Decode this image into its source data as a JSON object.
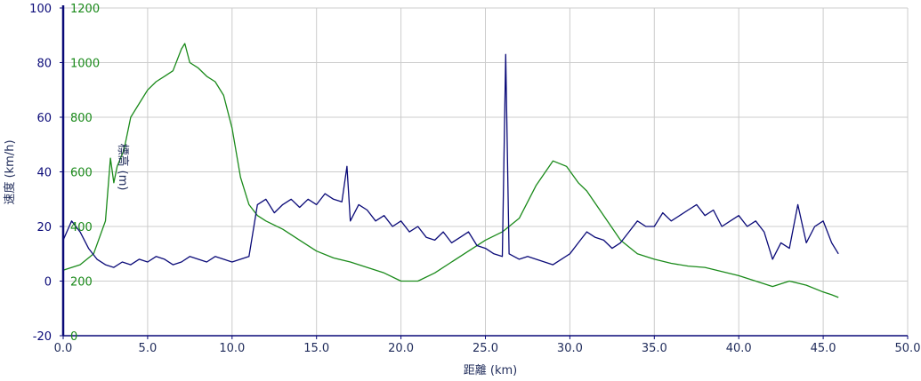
{
  "colors": {
    "speed": "#0a0a78",
    "elevation": "#1a8a1a",
    "grid": "#cccccc",
    "axis": "#0a0a78",
    "axis_text": "#1f2b5a"
  },
  "chart_data": {
    "type": "line",
    "xlabel": "距離 (km)",
    "ylabel": "速度 (km/h)",
    "y2label": "標高 (m)",
    "xlim": [
      0,
      50
    ],
    "ylim": [
      -20,
      100
    ],
    "y2lim": [
      0,
      1200
    ],
    "grid": true,
    "x_ticks": [
      "0.0",
      "5.0",
      "10.0",
      "15.0",
      "20.0",
      "25.0",
      "30.0",
      "35.0",
      "40.0",
      "45.0",
      "50.0"
    ],
    "y_ticks": [
      "100",
      "80",
      "60",
      "40",
      "20",
      "0",
      "-20"
    ],
    "y2_ticks": [
      "1200",
      "1000",
      "800",
      "600",
      "400",
      "200",
      "0"
    ],
    "series": [
      {
        "axis": "y2",
        "x": [
          0,
          1,
          1.8,
          2.5,
          2.8,
          3.0,
          3.2,
          3.6,
          4.0,
          4.5,
          5.0,
          5.5,
          6.0,
          6.5,
          7.0,
          7.2,
          7.5,
          8.0,
          8.5,
          9.0,
          9.5,
          10.0,
          10.5,
          11.0,
          11.5,
          12.0,
          13.0,
          14.0,
          15.0,
          16.0,
          17.0,
          18.0,
          19.0,
          20.0,
          21.0,
          22.0,
          23.0,
          24.0,
          25.0,
          26.0,
          27.0,
          28.0,
          29.0,
          29.8,
          30.5,
          31.0,
          32.0,
          33.0,
          34.0,
          35.0,
          36.0,
          37.0,
          38.0,
          39.0,
          40.0,
          41.0,
          42.0,
          43.0,
          44.0,
          45.0,
          45.5,
          45.9
        ],
        "values": [
          240,
          260,
          300,
          420,
          650,
          560,
          620,
          680,
          800,
          850,
          900,
          930,
          950,
          970,
          1050,
          1070,
          1000,
          980,
          950,
          930,
          880,
          760,
          580,
          480,
          440,
          420,
          390,
          350,
          310,
          285,
          270,
          250,
          230,
          200,
          200,
          230,
          270,
          310,
          350,
          380,
          430,
          550,
          640,
          620,
          560,
          530,
          440,
          350,
          300,
          280,
          265,
          255,
          250,
          235,
          220,
          200,
          180,
          200,
          185,
          160,
          150,
          140
        ]
      },
      {
        "axis": "y",
        "x": [
          0,
          0.5,
          1.0,
          1.5,
          2.0,
          2.5,
          3.0,
          3.5,
          4.0,
          4.5,
          5.0,
          5.5,
          6.0,
          6.5,
          7.0,
          7.5,
          8.0,
          8.5,
          9.0,
          9.5,
          10.0,
          10.5,
          11.0,
          11.5,
          12.0,
          12.5,
          13.0,
          13.5,
          14.0,
          14.5,
          15.0,
          15.5,
          16.0,
          16.5,
          16.8,
          17.0,
          17.5,
          18.0,
          18.5,
          19.0,
          19.5,
          20.0,
          20.5,
          21.0,
          21.5,
          22.0,
          22.5,
          23.0,
          23.5,
          24.0,
          24.5,
          25.0,
          25.5,
          26.0,
          26.2,
          26.4,
          27.0,
          27.5,
          28.0,
          28.5,
          29.0,
          29.5,
          30.0,
          30.5,
          31.0,
          31.5,
          32.0,
          32.5,
          33.0,
          33.5,
          34.0,
          34.5,
          35.0,
          35.5,
          36.0,
          36.5,
          37.0,
          37.5,
          38.0,
          38.5,
          39.0,
          39.5,
          40.0,
          40.5,
          41.0,
          41.5,
          42.0,
          42.5,
          43.0,
          43.5,
          44.0,
          44.5,
          45.0,
          45.5,
          45.9
        ],
        "values": [
          15,
          22,
          18,
          12,
          8,
          6,
          5,
          7,
          6,
          8,
          7,
          9,
          8,
          6,
          7,
          9,
          8,
          7,
          9,
          8,
          7,
          8,
          9,
          28,
          30,
          25,
          28,
          30,
          27,
          30,
          28,
          32,
          30,
          29,
          42,
          22,
          28,
          26,
          22,
          24,
          20,
          22,
          18,
          20,
          16,
          15,
          18,
          14,
          16,
          18,
          13,
          12,
          10,
          9,
          83,
          10,
          8,
          9,
          8,
          7,
          6,
          8,
          10,
          14,
          18,
          16,
          15,
          12,
          14,
          18,
          22,
          20,
          20,
          25,
          22,
          24,
          26,
          28,
          24,
          26,
          20,
          22,
          24,
          20,
          22,
          18,
          8,
          14,
          12,
          28,
          14,
          20,
          22,
          14,
          10
        ]
      }
    ]
  }
}
